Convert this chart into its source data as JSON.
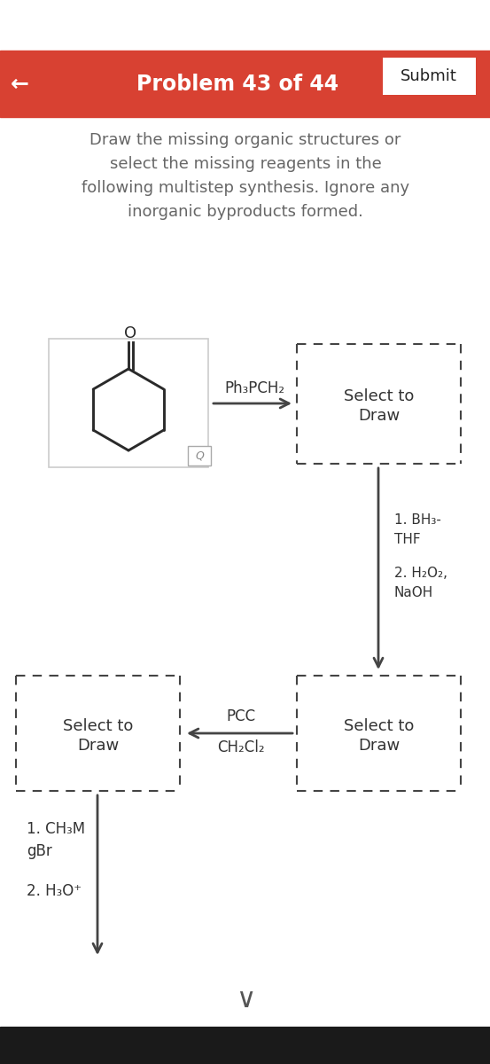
{
  "title": "Problem 43 of 44",
  "submit_text": "Submit",
  "header_color": "#D84132",
  "header_text_color": "#FFFFFF",
  "back_arrow": "←",
  "description_lines": [
    "Draw the missing organic structures or",
    "select the missing reagents in the",
    "following multistep synthesis. Ignore any",
    "inorganic byproducts formed."
  ],
  "reagent1": "Ph₃PCH₂",
  "reagent2_line1": "1. BH₃-",
  "reagent2_line2": "THF",
  "reagent2_line3": "2. H₂O₂,",
  "reagent2_line4": "NaOH",
  "reagent3_line1": "PCC",
  "reagent3_line2": "CH₂Cl₂",
  "reagent4_line1": "1. CH₃M",
  "reagent4_line2": "gBr",
  "reagent4_line3": "2. H₃O⁺",
  "select_to_draw_line1": "Select to",
  "select_to_draw_line2": "Draw",
  "background_color": "#FFFFFF",
  "text_color": "#333333",
  "arrow_color": "#444444",
  "dash_color": "#444444",
  "mol_box_edge": "#CCCCCC",
  "mag_icon_color": "#888888"
}
